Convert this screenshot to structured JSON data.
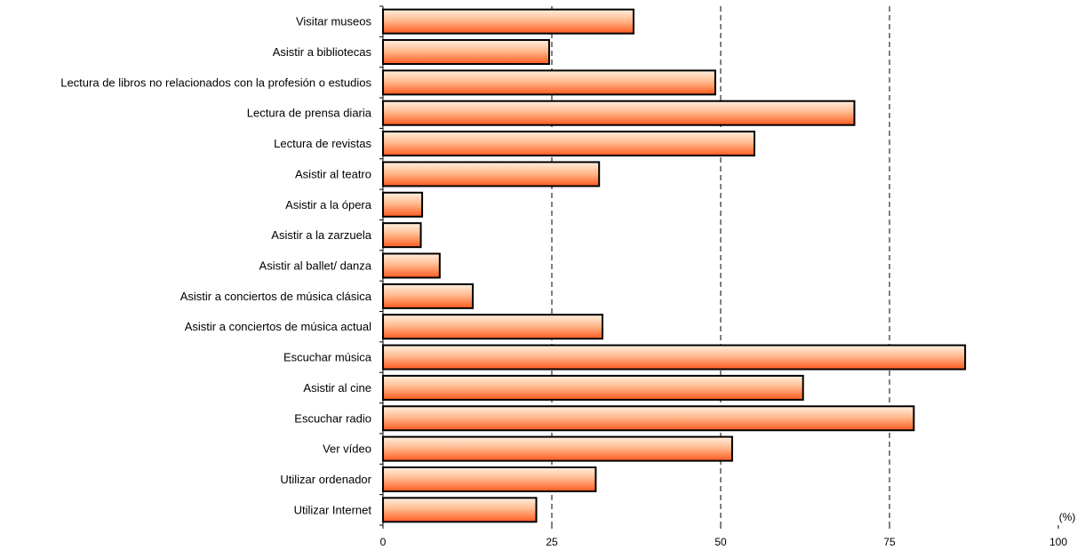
{
  "chart_data": {
    "type": "bar",
    "orientation": "horizontal",
    "categories": [
      "Visitar museos",
      "Asistir a bibliotecas",
      "Lectura de libros no relacionados con la profesión o estudios",
      "Lectura de prensa diaria",
      "Lectura de revistas",
      "Asistir al teatro",
      "Asistir a la ópera",
      "Asistir a la zarzuela",
      "Asistir al ballet/ danza",
      "Asistir a  conciertos de música clásica",
      "Asistir a  conciertos de música actual",
      "Escuchar música",
      "Asistir al cine",
      "Escuchar radio",
      "Ver vídeo",
      "Utilizar ordenador",
      "Utilizar Internet"
    ],
    "values": [
      37.1,
      24.6,
      49.2,
      69.8,
      55.0,
      32.0,
      5.8,
      5.6,
      8.4,
      13.3,
      32.5,
      86.2,
      62.2,
      78.6,
      51.7,
      31.5,
      22.7
    ],
    "xlim": [
      0,
      100
    ],
    "xticks": [
      0,
      25,
      50,
      75,
      100
    ],
    "unit_label": "(%)",
    "grid": "vertical dashed at 25, 50, 75",
    "colors": {
      "bar_light": "#fff0e0",
      "bar_mid": "#ffbb90",
      "bar_dark": "#ff5a1e",
      "bar_stroke": "#000000",
      "grid": "#000000"
    }
  }
}
